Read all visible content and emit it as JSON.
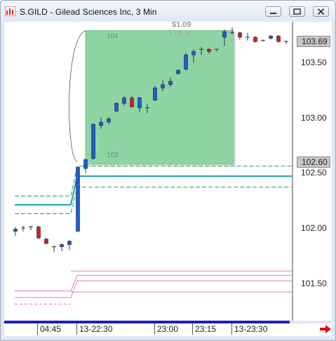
{
  "window": {
    "title": "S.GILD - Gilead Sciences Inc, 3 Min"
  },
  "price_axis": {
    "last_price": "103.69",
    "marker_price": "102.60",
    "ticks": [
      "103.50",
      "103.00",
      "102.50",
      "102.00",
      "101.50"
    ]
  },
  "time_axis": {
    "labels": [
      "04:45",
      "13-22:30",
      "23:00",
      "23:15",
      "13-23:30"
    ]
  },
  "measure_box": {
    "top_price_label": "104",
    "bottom_price_label": "103",
    "change_dollars": "$1.09",
    "change_percent": "1.06 %"
  },
  "colors": {
    "up_candle": "#1f5fd0",
    "down_candle": "#d02020",
    "doji": "#8a5a28",
    "teal_line": "#1a9fb5",
    "green_dash": "#22a040",
    "pink_line": "#f090c8",
    "measure_fill": "#8fd4a5"
  },
  "chart_data": {
    "type": "candlestick",
    "y_range": [
      101.16,
      103.87
    ],
    "candles": [
      {
        "o": 101.97,
        "h": 102.01,
        "l": 101.93,
        "c": 101.99
      },
      {
        "o": 101.99,
        "h": 102.02,
        "l": 101.97,
        "c": 102.0
      },
      {
        "o": 102.0,
        "h": 102.02,
        "l": 101.98,
        "c": 102.01
      },
      {
        "o": 102.01,
        "h": 102.02,
        "l": 101.9,
        "c": 101.91
      },
      {
        "o": 101.9,
        "h": 101.91,
        "l": 101.85,
        "c": 101.86
      },
      {
        "o": 101.82,
        "h": 101.84,
        "l": 101.78,
        "c": 101.83
      },
      {
        "o": 101.83,
        "h": 101.86,
        "l": 101.79,
        "c": 101.85
      },
      {
        "o": 101.85,
        "h": 101.89,
        "l": 101.8,
        "c": 101.88
      },
      {
        "o": 101.97,
        "h": 102.56,
        "l": 101.97,
        "c": 102.55
      },
      {
        "o": 102.54,
        "h": 102.63,
        "l": 102.5,
        "c": 102.62
      },
      {
        "o": 102.63,
        "h": 102.95,
        "l": 102.62,
        "c": 102.94
      },
      {
        "o": 102.93,
        "h": 103.0,
        "l": 102.9,
        "c": 102.96
      },
      {
        "o": 102.96,
        "h": 103.01,
        "l": 102.94,
        "c": 102.99
      },
      {
        "o": 103.06,
        "h": 103.14,
        "l": 103.05,
        "c": 103.13
      },
      {
        "o": 103.13,
        "h": 103.2,
        "l": 103.11,
        "c": 103.18
      },
      {
        "o": 103.18,
        "h": 103.2,
        "l": 103.09,
        "c": 103.1
      },
      {
        "o": 103.09,
        "h": 103.19,
        "l": 103.05,
        "c": 103.18
      },
      {
        "o": 103.08,
        "h": 103.12,
        "l": 103.04,
        "c": 103.09
      },
      {
        "o": 103.16,
        "h": 103.29,
        "l": 103.15,
        "c": 103.27
      },
      {
        "o": 103.27,
        "h": 103.34,
        "l": 103.24,
        "c": 103.3
      },
      {
        "o": 103.3,
        "h": 103.37,
        "l": 103.28,
        "c": 103.33
      },
      {
        "o": 103.4,
        "h": 103.44,
        "l": 103.39,
        "c": 103.43
      },
      {
        "o": 103.44,
        "h": 103.59,
        "l": 103.43,
        "c": 103.57
      },
      {
        "o": 103.57,
        "h": 103.62,
        "l": 103.5,
        "c": 103.6
      },
      {
        "o": 103.61,
        "h": 103.64,
        "l": 103.57,
        "c": 103.62
      },
      {
        "o": 103.62,
        "h": 103.63,
        "l": 103.58,
        "c": 103.6
      },
      {
        "o": 103.61,
        "h": 103.62,
        "l": 103.6,
        "c": 103.62
      },
      {
        "o": 103.73,
        "h": 103.8,
        "l": 103.65,
        "c": 103.78
      },
      {
        "o": 103.78,
        "h": 103.82,
        "l": 103.76,
        "c": 103.77
      },
      {
        "o": 103.77,
        "h": 103.78,
        "l": 103.71,
        "c": 103.73
      },
      {
        "o": 103.72,
        "h": 103.77,
        "l": 103.7,
        "c": 103.73
      },
      {
        "o": 103.73,
        "h": 103.74,
        "l": 103.68,
        "c": 103.69
      },
      {
        "o": 103.7,
        "h": 103.71,
        "l": 103.69,
        "c": 103.7
      },
      {
        "o": 103.72,
        "h": 103.75,
        "l": 103.71,
        "c": 103.74
      },
      {
        "o": 103.74,
        "h": 103.75,
        "l": 103.68,
        "c": 103.69
      },
      {
        "o": 103.69,
        "h": 103.7,
        "l": 103.67,
        "c": 103.69
      }
    ],
    "candle_x": [
      16,
      27,
      38,
      49,
      60,
      71,
      82,
      93,
      105,
      116,
      127,
      138,
      149,
      160,
      171,
      182,
      193,
      204,
      215,
      226,
      237,
      248,
      259,
      270,
      281,
      292,
      303,
      314,
      325,
      336,
      347,
      358,
      369,
      380,
      391,
      402
    ],
    "teal_line": [
      {
        "x": 15,
        "y": 102.21
      },
      {
        "x": 95,
        "y": 102.21
      },
      {
        "x": 104,
        "y": 102.47
      },
      {
        "x": 410,
        "y": 102.47
      }
    ],
    "green_dash_lines": [
      {
        "pts": [
          {
            "x": 15,
            "y": 102.29
          },
          {
            "x": 95,
            "y": 102.29
          },
          {
            "x": 104,
            "y": 102.56
          },
          {
            "x": 410,
            "y": 102.56
          }
        ]
      },
      {
        "pts": [
          {
            "x": 15,
            "y": 102.13
          },
          {
            "x": 95,
            "y": 102.13
          },
          {
            "x": 104,
            "y": 102.37
          },
          {
            "x": 410,
            "y": 102.37
          }
        ]
      }
    ],
    "pink_lines": [
      {
        "dash": false,
        "pts": [
          {
            "x": 15,
            "y": 101.37
          },
          {
            "x": 95,
            "y": 101.37
          },
          {
            "x": 104,
            "y": 101.52
          },
          {
            "x": 410,
            "y": 101.52
          }
        ]
      },
      {
        "dash": false,
        "pts": [
          {
            "x": 95,
            "y": 101.61
          },
          {
            "x": 410,
            "y": 101.61
          }
        ]
      },
      {
        "dash": false,
        "pts": [
          {
            "x": 15,
            "y": 101.43
          },
          {
            "x": 95,
            "y": 101.43
          },
          {
            "x": 104,
            "y": 101.57
          },
          {
            "x": 410,
            "y": 101.57
          }
        ]
      },
      {
        "dash": false,
        "pts": [
          {
            "x": 95,
            "y": 101.42
          },
          {
            "x": 410,
            "y": 101.42
          }
        ]
      },
      {
        "dash": true,
        "pts": [
          {
            "x": 15,
            "y": 101.31
          },
          {
            "x": 95,
            "y": 101.31
          }
        ]
      }
    ],
    "measure_box": {
      "x1": 116,
      "x2": 327,
      "y_top": 103.79,
      "y_bottom": 102.58
    }
  }
}
